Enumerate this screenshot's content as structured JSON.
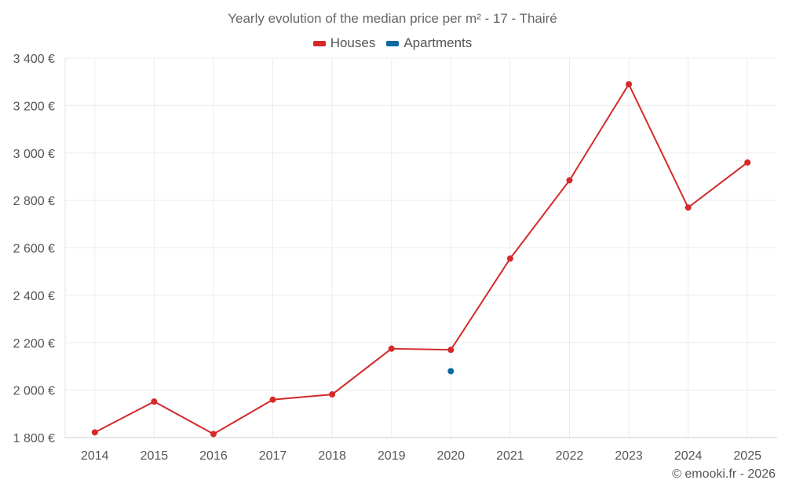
{
  "chart_data": {
    "type": "line",
    "title": "Yearly evolution of the median price per m² - 17 - Thairé",
    "categories": [
      "2014",
      "2015",
      "2016",
      "2017",
      "2018",
      "2019",
      "2020",
      "2021",
      "2022",
      "2023",
      "2024",
      "2025"
    ],
    "series": [
      {
        "name": "Houses",
        "color": "#d42a2a",
        "values": [
          1822,
          1952,
          1815,
          1960,
          1982,
          2175,
          2170,
          2555,
          2885,
          3290,
          2770,
          2960
        ]
      },
      {
        "name": "Apartments",
        "color": "#0b6aa2",
        "values": [
          null,
          null,
          null,
          null,
          null,
          null,
          2080,
          null,
          null,
          null,
          null,
          null
        ]
      }
    ],
    "y_ticks": [
      "1 800 €",
      "2 000 €",
      "2 200 €",
      "2 400 €",
      "2 600 €",
      "2 800 €",
      "3 000 €",
      "3 200 €",
      "3 400 €"
    ],
    "ylim": [
      1800,
      3400
    ],
    "grid": true,
    "legend_position": "top-center"
  },
  "footer": {
    "copyright": "© emooki.fr - 2026"
  }
}
